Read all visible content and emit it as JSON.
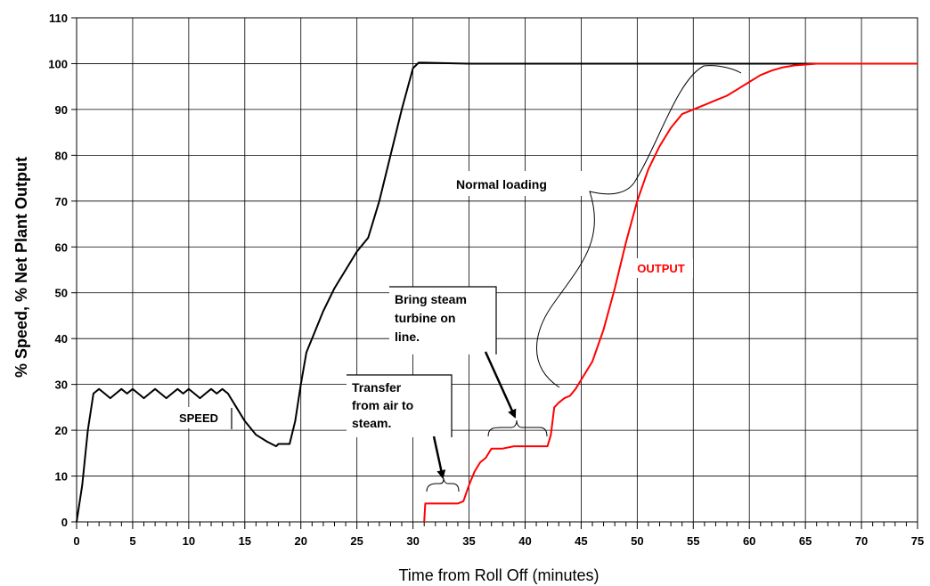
{
  "chart_data": {
    "type": "line",
    "title": "",
    "xlabel": "Time from Roll Off (minutes)",
    "ylabel": "% Speed, % Net Plant Output",
    "xlim": [
      0,
      75
    ],
    "ylim": [
      0,
      110
    ],
    "xticks": [
      0,
      5,
      10,
      15,
      20,
      25,
      30,
      35,
      40,
      45,
      50,
      55,
      60,
      65,
      70,
      75
    ],
    "yticks": [
      0,
      10,
      20,
      30,
      40,
      50,
      60,
      70,
      80,
      90,
      100,
      110
    ],
    "grid": true,
    "series": [
      {
        "name": "SPEED",
        "color": "#000000",
        "x": [
          0,
          0.5,
          1.0,
          1.5,
          2.0,
          2.5,
          3.0,
          3.5,
          4.0,
          4.5,
          5.0,
          5.5,
          6.0,
          6.5,
          7.0,
          7.5,
          8.0,
          8.5,
          9.0,
          9.5,
          10.0,
          10.5,
          11.0,
          11.5,
          12.0,
          12.5,
          13.0,
          13.5,
          14.0,
          15.0,
          16.0,
          17.0,
          17.8,
          18.0,
          19.0,
          19.5,
          20.0,
          20.5,
          21.0,
          22.0,
          23.0,
          24.0,
          25.0,
          26.0,
          27.0,
          28.0,
          29.0,
          30.0,
          30.5,
          31.0,
          35.0,
          40.0,
          45.0,
          50.0,
          55.0,
          60.0,
          65.0,
          70.0,
          75.0
        ],
        "y": [
          0,
          8,
          20,
          28,
          29,
          28,
          27,
          28,
          29,
          28,
          29,
          28,
          27,
          28,
          29,
          28,
          27,
          28,
          29,
          28,
          29,
          28,
          27,
          28,
          29,
          28,
          29,
          28,
          26,
          22,
          19,
          17.5,
          16.5,
          17,
          17,
          22,
          30,
          37,
          40,
          46,
          51,
          55,
          59,
          62,
          70,
          80,
          90,
          99,
          100.2,
          100.2,
          100,
          100,
          100,
          100,
          100,
          100,
          100,
          100,
          100
        ]
      },
      {
        "name": "OUTPUT",
        "color": "#ff0000",
        "x": [
          31.0,
          31.1,
          32.0,
          33.0,
          34.0,
          34.5,
          35.0,
          35.5,
          36.0,
          36.5,
          37.0,
          38.0,
          39.0,
          40.0,
          41.0,
          42.0,
          42.3,
          42.6,
          43.0,
          43.5,
          44.0,
          44.5,
          45.0,
          46.0,
          47.0,
          48.0,
          49.0,
          50.0,
          51.0,
          52.0,
          53.0,
          54.0,
          55.0,
          56.0,
          57.0,
          58.0,
          59.0,
          60.0,
          61.0,
          62.0,
          63.0,
          64.0,
          65.0,
          66.0,
          70.0,
          75.0
        ],
        "y": [
          0,
          4,
          4,
          4,
          4,
          4.5,
          8,
          11,
          13,
          14,
          16,
          16,
          16.5,
          16.5,
          16.5,
          16.5,
          19,
          25,
          26,
          27,
          27.5,
          29,
          31,
          35,
          42,
          51,
          61,
          70,
          77,
          82,
          86,
          89,
          90,
          91,
          92,
          93,
          94.5,
          96,
          97.5,
          98.5,
          99.2,
          99.6,
          99.8,
          100,
          100,
          100
        ]
      }
    ],
    "annotations": [
      {
        "name": "speed-label",
        "lines": [
          "SPEED"
        ]
      },
      {
        "name": "output-label",
        "lines": [
          "OUTPUT"
        ]
      },
      {
        "name": "normal-loading",
        "lines": [
          "Normal loading"
        ]
      },
      {
        "name": "bring-steam",
        "lines": [
          "Bring steam",
          "turbine on",
          "line."
        ]
      },
      {
        "name": "transfer",
        "lines": [
          "Transfer",
          "from air to",
          "steam."
        ]
      }
    ]
  }
}
